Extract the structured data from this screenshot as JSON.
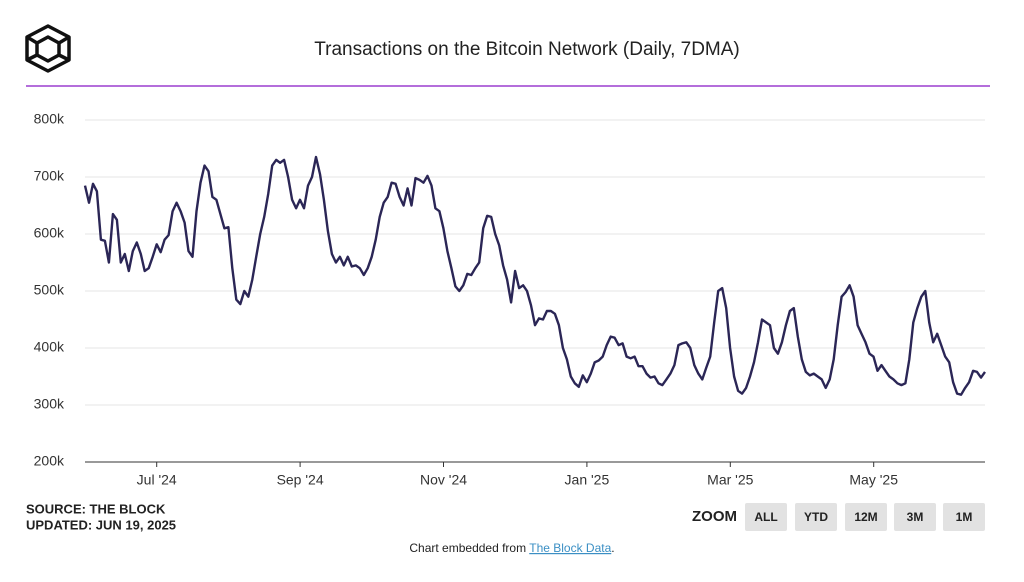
{
  "chart_data": {
    "type": "line",
    "title": "Transactions on the Bitcoin Network (Daily, 7DMA)",
    "series": [
      {
        "name": "Transactions",
        "color": "#2b2656",
        "values": [
          685000,
          655000,
          688000,
          675000,
          590000,
          588000,
          550000,
          635000,
          625000,
          550000,
          565000,
          535000,
          570000,
          585000,
          565000,
          535000,
          540000,
          560000,
          582000,
          568000,
          590000,
          598000,
          640000,
          655000,
          640000,
          620000,
          570000,
          560000,
          640000,
          690000,
          720000,
          710000,
          665000,
          660000,
          635000,
          610000,
          612000,
          540000,
          485000,
          477000,
          500000,
          490000,
          520000,
          560000,
          600000,
          630000,
          670000,
          720000,
          730000,
          725000,
          730000,
          700000,
          660000,
          645000,
          660000,
          645000,
          685000,
          700000,
          735000,
          705000,
          660000,
          605000,
          565000,
          550000,
          560000,
          545000,
          560000,
          543000,
          545000,
          540000,
          528000,
          540000,
          560000,
          590000,
          630000,
          655000,
          665000,
          690000,
          688000,
          665000,
          650000,
          680000,
          650000,
          698000,
          695000,
          690000,
          702000,
          685000,
          645000,
          640000,
          610000,
          570000,
          540000,
          508000,
          500000,
          510000,
          530000,
          528000,
          540000,
          550000,
          610000,
          632000,
          630000,
          600000,
          580000,
          545000,
          520000,
          480000,
          535000,
          505000,
          510000,
          500000,
          475000,
          440000,
          452000,
          450000,
          465000,
          465000,
          460000,
          440000,
          400000,
          380000,
          350000,
          338000,
          332000,
          352000,
          340000,
          355000,
          375000,
          378000,
          385000,
          405000,
          420000,
          418000,
          405000,
          408000,
          385000,
          382000,
          385000,
          368000,
          368000,
          355000,
          348000,
          350000,
          338000,
          335000,
          345000,
          355000,
          370000,
          405000,
          408000,
          410000,
          400000,
          370000,
          355000,
          345000,
          365000,
          385000,
          445000,
          500000,
          505000,
          470000,
          400000,
          350000,
          325000,
          320000,
          330000,
          350000,
          375000,
          410000,
          450000,
          445000,
          440000,
          400000,
          390000,
          410000,
          440000,
          465000,
          470000,
          420000,
          380000,
          358000,
          352000,
          355000,
          350000,
          345000,
          330000,
          345000,
          380000,
          440000,
          490000,
          498000,
          510000,
          490000,
          440000,
          425000,
          410000,
          390000,
          385000,
          360000,
          370000,
          360000,
          350000,
          345000,
          338000,
          335000,
          338000,
          380000,
          445000,
          470000,
          490000,
          500000,
          445000,
          410000,
          425000,
          405000,
          385000,
          375000,
          340000,
          320000,
          318000,
          330000,
          340000,
          360000,
          358000,
          348000,
          358000
        ]
      }
    ],
    "ylim": [
      200000,
      800000
    ],
    "yticks": [
      {
        "value": 200000,
        "label": "200k"
      },
      {
        "value": 300000,
        "label": "300k"
      },
      {
        "value": 400000,
        "label": "400k"
      },
      {
        "value": 500000,
        "label": "500k"
      },
      {
        "value": 600000,
        "label": "600k"
      },
      {
        "value": 700000,
        "label": "700k"
      },
      {
        "value": 800000,
        "label": "800k"
      }
    ],
    "xticks": [
      {
        "value": "2024-07",
        "label": "Jul '24"
      },
      {
        "value": "2024-09",
        "label": "Sep '24"
      },
      {
        "value": "2024-11",
        "label": "Nov '24"
      },
      {
        "value": "2025-01",
        "label": "Jan '25"
      },
      {
        "value": "2025-03",
        "label": "Mar '25"
      },
      {
        "value": "2025-05",
        "label": "May '25"
      }
    ],
    "grid": true
  },
  "source": "SOURCE: THE BLOCK",
  "updated": "UPDATED: JUN 19, 2025",
  "zoom": {
    "label": "ZOOM",
    "buttons": [
      "ALL",
      "YTD",
      "12M",
      "3M",
      "1M"
    ]
  },
  "footer": {
    "prefix": "Chart embedded from",
    "link": "The Block Data",
    "suffix": "."
  }
}
